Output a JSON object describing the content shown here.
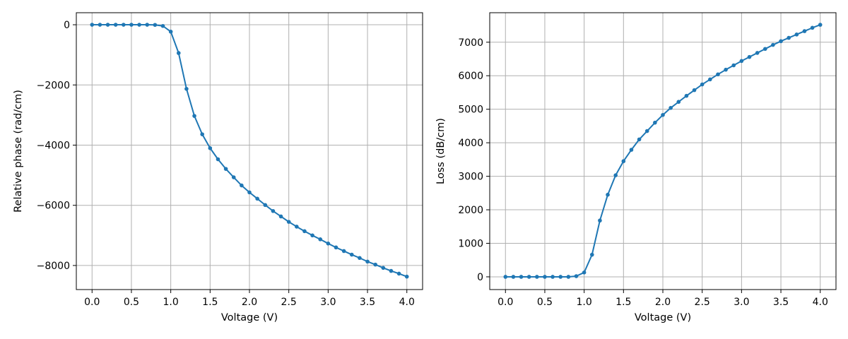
{
  "style": {
    "line_color": "#1f77b4",
    "grid_color": "#b0b0b0"
  },
  "chart_data": [
    {
      "type": "line",
      "title": "",
      "xlabel": "Voltage (V)",
      "ylabel": "Relative phase (rad/cm)",
      "xlim": [
        -0.2,
        4.2
      ],
      "ylim": [
        -8800,
        400
      ],
      "xticks": [
        0.0,
        0.5,
        1.0,
        1.5,
        2.0,
        2.5,
        3.0,
        3.5,
        4.0
      ],
      "xtick_labels": [
        "0.0",
        "0.5",
        "1.0",
        "1.5",
        "2.0",
        "2.5",
        "3.0",
        "3.5",
        "4.0"
      ],
      "yticks": [
        0,
        -2000,
        -4000,
        -6000,
        -8000
      ],
      "ytick_labels": [
        "0",
        "−2000",
        "−4000",
        "−6000",
        "−8000"
      ],
      "grid": true,
      "markers": true,
      "series": [
        {
          "x": [
            0.0,
            0.1,
            0.2,
            0.3,
            0.4,
            0.5,
            0.6,
            0.7,
            0.8,
            0.9,
            1.0,
            1.1,
            1.2,
            1.3,
            1.4,
            1.5,
            1.6,
            1.7,
            1.8,
            1.9,
            2.0,
            2.1,
            2.2,
            2.3,
            2.4,
            2.5,
            2.6,
            2.7,
            2.8,
            2.9,
            3.0,
            3.1,
            3.2,
            3.3,
            3.4,
            3.5,
            3.6,
            3.7,
            3.8,
            3.9,
            4.0
          ],
          "values": [
            0,
            0,
            0,
            0,
            0,
            0,
            0,
            0,
            -5,
            -40,
            -230,
            -940,
            -2130,
            -3030,
            -3640,
            -4100,
            -4470,
            -4790,
            -5070,
            -5340,
            -5570,
            -5780,
            -5990,
            -6190,
            -6370,
            -6550,
            -6710,
            -6860,
            -7000,
            -7130,
            -7270,
            -7400,
            -7520,
            -7640,
            -7750,
            -7870,
            -7970,
            -8080,
            -8180,
            -8270,
            -8370
          ]
        }
      ]
    },
    {
      "type": "line",
      "title": "",
      "xlabel": "Voltage (V)",
      "ylabel": "Loss (dB/cm)",
      "xlim": [
        -0.2,
        4.2
      ],
      "ylim": [
        -380,
        7880
      ],
      "xticks": [
        0.0,
        0.5,
        1.0,
        1.5,
        2.0,
        2.5,
        3.0,
        3.5,
        4.0
      ],
      "xtick_labels": [
        "0.0",
        "0.5",
        "1.0",
        "1.5",
        "2.0",
        "2.5",
        "3.0",
        "3.5",
        "4.0"
      ],
      "yticks": [
        0,
        1000,
        2000,
        3000,
        4000,
        5000,
        6000,
        7000
      ],
      "ytick_labels": [
        "0",
        "1000",
        "2000",
        "3000",
        "4000",
        "5000",
        "6000",
        "7000"
      ],
      "grid": true,
      "markers": true,
      "series": [
        {
          "x": [
            0.0,
            0.1,
            0.2,
            0.3,
            0.4,
            0.5,
            0.6,
            0.7,
            0.8,
            0.9,
            1.0,
            1.1,
            1.2,
            1.3,
            1.4,
            1.5,
            1.6,
            1.7,
            1.8,
            1.9,
            2.0,
            2.1,
            2.2,
            2.3,
            2.4,
            2.5,
            2.6,
            2.7,
            2.8,
            2.9,
            3.0,
            3.1,
            3.2,
            3.3,
            3.4,
            3.5,
            3.6,
            3.7,
            3.8,
            3.9,
            4.0
          ],
          "values": [
            0,
            0,
            0,
            0,
            0,
            0,
            0,
            0,
            0,
            20,
            130,
            660,
            1680,
            2450,
            3030,
            3450,
            3790,
            4100,
            4350,
            4600,
            4830,
            5040,
            5220,
            5400,
            5570,
            5740,
            5890,
            6040,
            6180,
            6310,
            6440,
            6560,
            6680,
            6800,
            6920,
            7030,
            7130,
            7230,
            7330,
            7430,
            7520
          ]
        }
      ]
    }
  ]
}
